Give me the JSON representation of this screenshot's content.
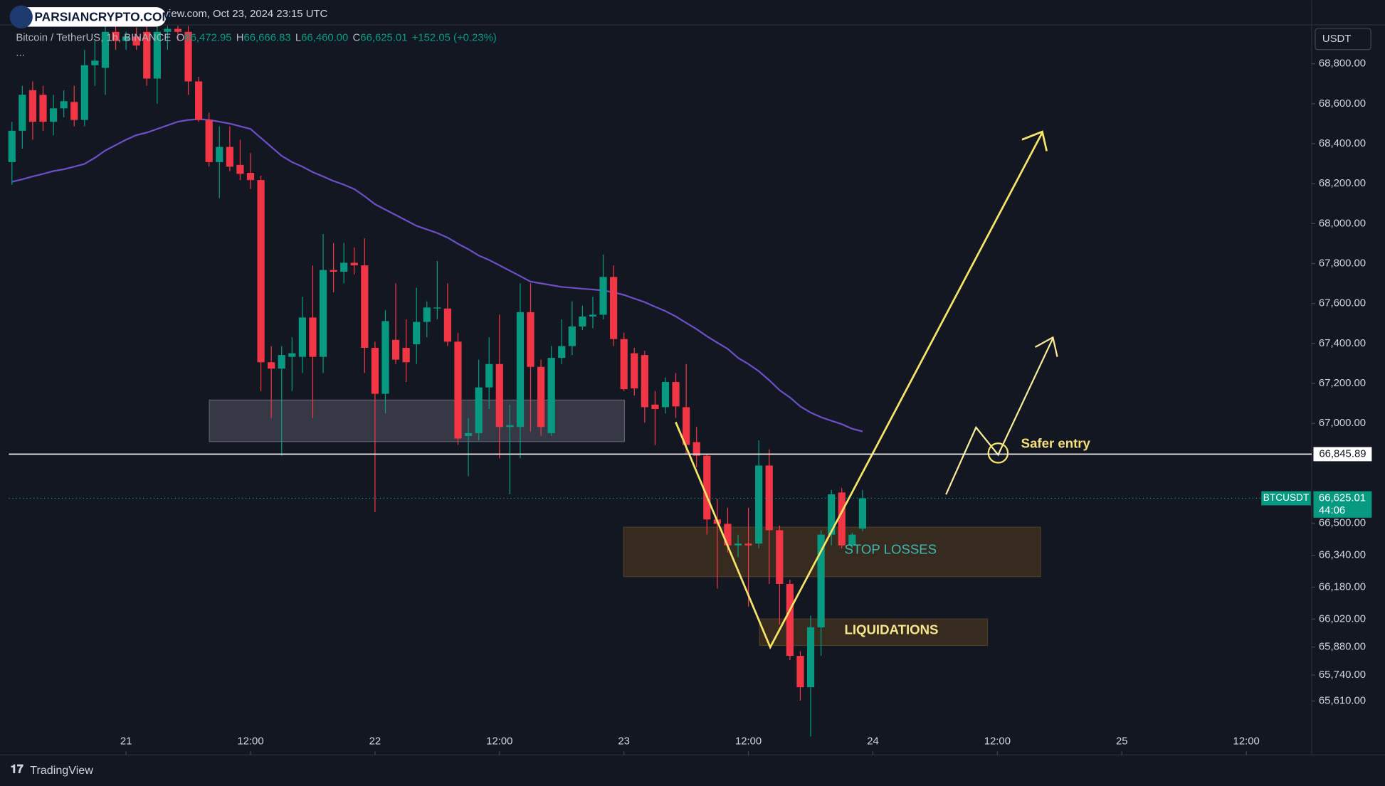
{
  "header": {
    "source": "view.com, Oct 23, 2024 23:15 UTC",
    "logo": "PARSIANCRYPTO.COM",
    "symbol": "Bitcoin / TetherUS, 1h, BINANCE",
    "ohlc": [
      {
        "label": "O",
        "value": "66,472.95"
      },
      {
        "label": "H",
        "value": "66,666.83"
      },
      {
        "label": "L",
        "value": "66,460.00"
      },
      {
        "label": "C",
        "value": "66,625.01"
      }
    ],
    "change": "+152.05 (+0.23%)",
    "more": "...",
    "currency": "USDT",
    "brand": "TradingView"
  },
  "chart_data": {
    "type": "candlestick",
    "up_color": "#089981",
    "down_color": "#f23645",
    "open": [
      68308,
      68465,
      68668,
      68645,
      68510,
      68577,
      68609,
      68519,
      68793,
      68780,
      68960,
      68915,
      68937,
      68960,
      68726,
      68960,
      68975,
      68960,
      68712,
      68519,
      68308,
      68384,
      68294,
      68254,
      68218,
      67306,
      67274,
      67333,
      67333,
      67530,
      67333,
      67768,
      67759,
      67804,
      67791,
      67378,
      67148,
      67418,
      67378,
      67396,
      67508,
      67575,
      67575,
      67409,
      66937,
      66951,
      67180,
      67297,
      66982,
      66982,
      67557,
      67283,
      66951,
      67328,
      67387,
      67485,
      67535,
      67544,
      67733,
      67422,
      67351,
      67342,
      67094,
      67081,
      67207,
      67081,
      66906,
      66838,
      66519,
      66497,
      66389,
      66398,
      66398,
      66789,
      66465,
      66196,
      65836,
      65679,
      65979,
      66443,
      66654,
      66389,
      66472.95
    ],
    "high": [
      68510,
      68690,
      68712,
      68690,
      68645,
      68667,
      68690,
      68870,
      68915,
      68990,
      68990,
      68960,
      68982,
      68990,
      68990,
      68990,
      68990,
      68990,
      68735,
      68555,
      68487,
      68487,
      68420,
      68353,
      68240,
      67387,
      67387,
      67431,
      67634,
      67791,
      67948,
      67903,
      67903,
      67881,
      67926,
      67409,
      67566,
      67701,
      67521,
      67679,
      67611,
      67813,
      67701,
      67454,
      67027,
      67319,
      67431,
      67544,
      67094,
      67701,
      67701,
      67319,
      67387,
      67521,
      67611,
      67589,
      67634,
      67845,
      67791,
      67454,
      67378,
      67364,
      67162,
      67229,
      67252,
      67297,
      66982,
      66847,
      66622,
      66578,
      66443,
      66578,
      66915,
      66870,
      66488,
      66218,
      65859,
      66038,
      66465,
      66667,
      66676,
      66452,
      66666.83
    ],
    "low": [
      68195,
      68375,
      68420,
      68465,
      68442,
      68532,
      68487,
      68487,
      68690,
      68645,
      68870,
      68870,
      68870,
      68690,
      68600,
      68870,
      68915,
      68645,
      68510,
      68285,
      68128,
      68263,
      68218,
      68173,
      67162,
      67027,
      66838,
      67162,
      67252,
      67027,
      67252,
      67656,
      67701,
      67746,
      67252,
      66555,
      67050,
      67297,
      67207,
      67297,
      67431,
      67521,
      67387,
      66892,
      66735,
      66915,
      67072,
      66825,
      66645,
      66825,
      66960,
      66937,
      66937,
      67297,
      67342,
      67467,
      67476,
      67521,
      67387,
      67162,
      67139,
      67004,
      66892,
      67049,
      67027,
      66847,
      66780,
      66443,
      66173,
      66353,
      66330,
      66083,
      66375,
      66196,
      65993,
      65814,
      65612,
      65432,
      65836,
      66389,
      66375,
      66375,
      66460.0
    ],
    "close": [
      68465,
      68645,
      68510,
      68510,
      68577,
      68613,
      68519,
      68793,
      68816,
      68960,
      68915,
      68937,
      68892,
      68726,
      68960,
      68975,
      68960,
      68712,
      68519,
      68308,
      68384,
      68285,
      68249,
      68218,
      67306,
      67274,
      67342,
      67351,
      67530,
      67333,
      67768,
      67759,
      67804,
      67791,
      67378,
      67148,
      67512,
      67319,
      67306,
      67508,
      67580,
      67580,
      67409,
      66924,
      66951,
      67180,
      67297,
      66982,
      66991,
      67557,
      67283,
      66982,
      67328,
      67387,
      67485,
      67535,
      67544,
      67733,
      67422,
      67171,
      67175,
      67081,
      67072,
      67207,
      67085,
      66892,
      66838,
      66519,
      66497,
      66389,
      66398,
      66389,
      66789,
      66465,
      66196,
      65836,
      65679,
      65979,
      66443,
      66645,
      66389,
      66443,
      66625.01
    ],
    "ma": {
      "color": "#6c4fc6",
      "values": [
        68209,
        68222,
        68236,
        68249,
        68263,
        68272,
        68285,
        68299,
        68330,
        68366,
        68393,
        68420,
        68443,
        68456,
        68474,
        68492,
        68510,
        68519,
        68523,
        68519,
        68510,
        68501,
        68487,
        68474,
        68429,
        68384,
        68339,
        68308,
        68285,
        68258,
        68236,
        68213,
        68195,
        68173,
        68137,
        68097,
        68070,
        68043,
        68016,
        67989,
        67971,
        67953,
        67930,
        67899,
        67872,
        67840,
        67818,
        67791,
        67764,
        67737,
        67710,
        67701,
        67692,
        67683,
        67679,
        67674,
        67670,
        67665,
        67656,
        67643,
        67625,
        67607,
        67584,
        67562,
        67535,
        67503,
        67472,
        67436,
        67404,
        67373,
        67328,
        67297,
        67261,
        67216,
        67166,
        67130,
        67085,
        67054,
        67031,
        67013,
        66996,
        66973,
        66960
      ]
    },
    "ylim": [
      65340,
      68995
    ],
    "xlim": [
      -0.3,
      125.3
    ],
    "yticks": [
      {
        "value": 68800,
        "label": "68,800.00"
      },
      {
        "value": 68600,
        "label": "68,600.00"
      },
      {
        "value": 68400,
        "label": "68,400.00"
      },
      {
        "value": 68200,
        "label": "68,200.00"
      },
      {
        "value": 68000,
        "label": "68,000.00"
      },
      {
        "value": 67800,
        "label": "67,800.00"
      },
      {
        "value": 67600,
        "label": "67,600.00"
      },
      {
        "value": 67400,
        "label": "67,400.00"
      },
      {
        "value": 67200,
        "label": "67,200.00"
      },
      {
        "value": 67000,
        "label": "67,000.00"
      },
      {
        "value": 66500,
        "label": "66,500.00"
      },
      {
        "value": 66340,
        "label": "66,340.00"
      },
      {
        "value": 66180,
        "label": "66,180.00"
      },
      {
        "value": 66020,
        "label": "66,020.00"
      },
      {
        "value": 65880,
        "label": "65,880.00"
      },
      {
        "value": 65740,
        "label": "65,740.00"
      },
      {
        "value": 65610,
        "label": "65,610.00"
      }
    ],
    "xticks": [
      {
        "value": 11,
        "label": "21"
      },
      {
        "value": 23,
        "label": "12:00"
      },
      {
        "value": 35,
        "label": "22"
      },
      {
        "value": 47,
        "label": "12:00"
      },
      {
        "value": 59,
        "label": "23"
      },
      {
        "value": 71,
        "label": "12:00"
      },
      {
        "value": 83,
        "label": "24"
      },
      {
        "value": 95,
        "label": "12:00"
      },
      {
        "value": 107,
        "label": "25"
      },
      {
        "value": 119,
        "label": "12:00"
      }
    ],
    "hline": {
      "value": 66845.89,
      "label": "66,845.89",
      "color": "#ffffff"
    },
    "last_price": {
      "symbol": "BTCUSDT",
      "label": "66,625.01",
      "countdown": "44:06",
      "color": "#089981"
    },
    "annotations": {
      "stop_losses": "STOP LOSSES",
      "liquidations": "LIQUIDATIONS",
      "safer_entry": "Safer entry"
    }
  }
}
